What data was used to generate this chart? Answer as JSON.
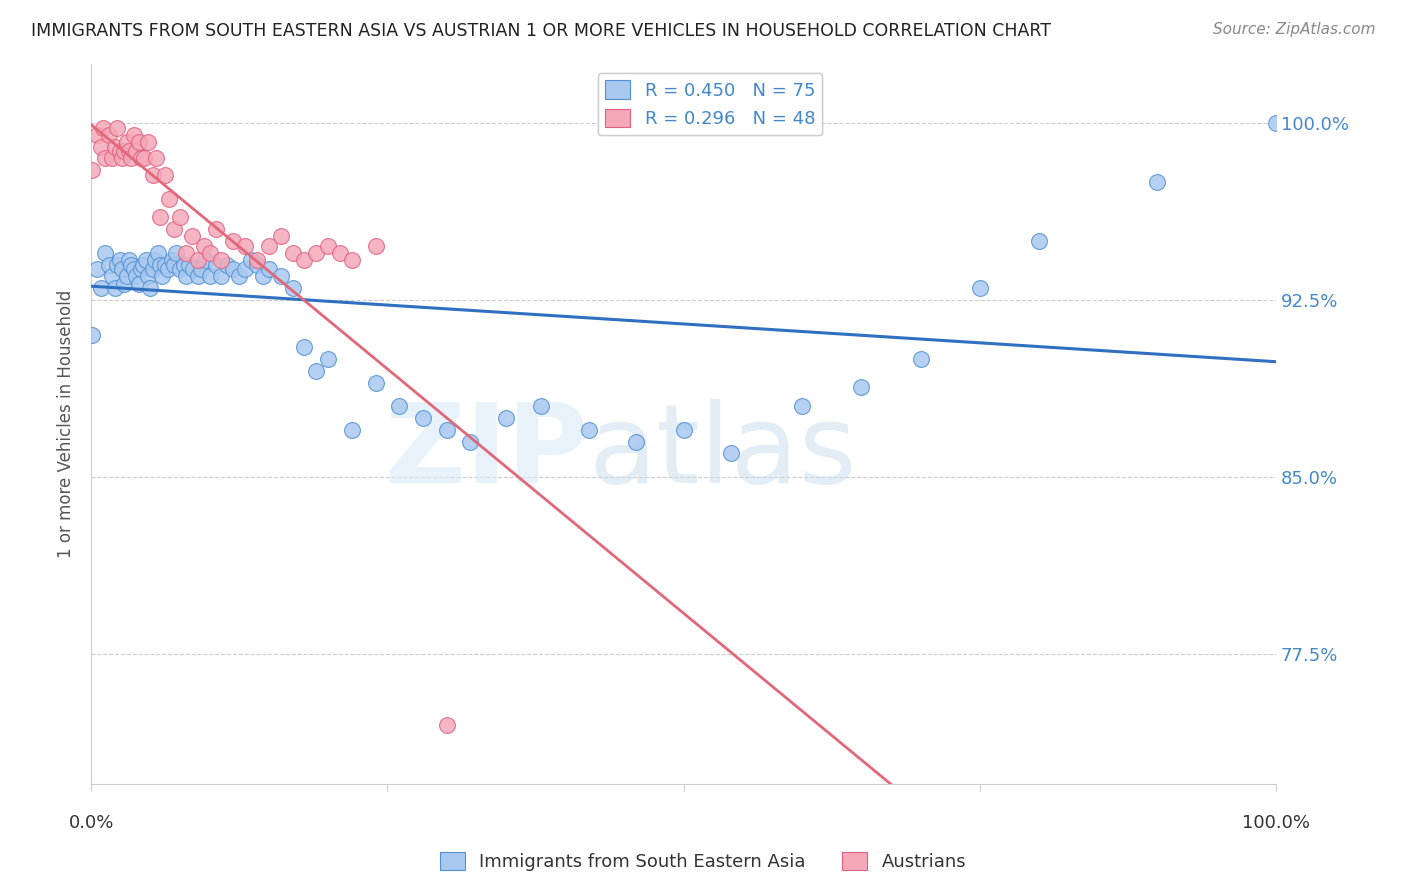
{
  "title": "IMMIGRANTS FROM SOUTH EASTERN ASIA VS AUSTRIAN 1 OR MORE VEHICLES IN HOUSEHOLD CORRELATION CHART",
  "source": "Source: ZipAtlas.com",
  "ylabel": "1 or more Vehicles in Household",
  "xlim": [
    0.0,
    1.0
  ],
  "ylim": [
    0.72,
    1.025
  ],
  "yticks": [
    0.775,
    0.85,
    0.925,
    1.0
  ],
  "ytick_labels": [
    "77.5%",
    "85.0%",
    "92.5%",
    "100.0%"
  ],
  "blue_R": 0.45,
  "blue_N": 75,
  "pink_R": 0.296,
  "pink_N": 48,
  "blue_color": "#A8C8F0",
  "pink_color": "#F4A8B8",
  "blue_edge_color": "#5090D0",
  "pink_edge_color": "#E06080",
  "blue_line_color": "#3070C0",
  "pink_line_color": "#E06878",
  "blue_scatter_x": [
    0.001,
    0.005,
    0.008,
    0.012,
    0.015,
    0.018,
    0.02,
    0.022,
    0.024,
    0.026,
    0.028,
    0.03,
    0.032,
    0.034,
    0.036,
    0.038,
    0.04,
    0.042,
    0.044,
    0.046,
    0.048,
    0.05,
    0.052,
    0.054,
    0.056,
    0.058,
    0.06,
    0.062,
    0.065,
    0.068,
    0.07,
    0.072,
    0.075,
    0.078,
    0.08,
    0.083,
    0.086,
    0.09,
    0.093,
    0.096,
    0.1,
    0.105,
    0.11,
    0.115,
    0.12,
    0.125,
    0.13,
    0.135,
    0.14,
    0.145,
    0.15,
    0.16,
    0.17,
    0.18,
    0.19,
    0.2,
    0.22,
    0.24,
    0.26,
    0.28,
    0.3,
    0.32,
    0.35,
    0.38,
    0.42,
    0.46,
    0.5,
    0.54,
    0.6,
    0.65,
    0.7,
    0.75,
    0.8,
    0.9,
    1.0
  ],
  "blue_scatter_y": [
    0.91,
    0.938,
    0.93,
    0.945,
    0.94,
    0.935,
    0.93,
    0.94,
    0.942,
    0.938,
    0.932,
    0.935,
    0.942,
    0.94,
    0.938,
    0.935,
    0.932,
    0.938,
    0.94,
    0.942,
    0.935,
    0.93,
    0.938,
    0.942,
    0.945,
    0.94,
    0.935,
    0.94,
    0.938,
    0.942,
    0.94,
    0.945,
    0.938,
    0.94,
    0.935,
    0.94,
    0.938,
    0.935,
    0.938,
    0.942,
    0.935,
    0.94,
    0.935,
    0.94,
    0.938,
    0.935,
    0.938,
    0.942,
    0.94,
    0.935,
    0.938,
    0.935,
    0.93,
    0.905,
    0.895,
    0.9,
    0.87,
    0.89,
    0.88,
    0.875,
    0.87,
    0.865,
    0.875,
    0.88,
    0.87,
    0.865,
    0.87,
    0.86,
    0.88,
    0.888,
    0.9,
    0.93,
    0.95,
    0.975,
    1.0
  ],
  "pink_scatter_x": [
    0.001,
    0.005,
    0.008,
    0.01,
    0.012,
    0.015,
    0.018,
    0.02,
    0.022,
    0.024,
    0.026,
    0.028,
    0.03,
    0.032,
    0.034,
    0.036,
    0.038,
    0.04,
    0.042,
    0.045,
    0.048,
    0.052,
    0.055,
    0.058,
    0.062,
    0.066,
    0.07,
    0.075,
    0.08,
    0.085,
    0.09,
    0.095,
    0.1,
    0.105,
    0.11,
    0.12,
    0.13,
    0.14,
    0.15,
    0.16,
    0.17,
    0.18,
    0.19,
    0.2,
    0.21,
    0.22,
    0.24,
    0.3
  ],
  "pink_scatter_y": [
    0.98,
    0.995,
    0.99,
    0.998,
    0.985,
    0.995,
    0.985,
    0.99,
    0.998,
    0.988,
    0.985,
    0.988,
    0.992,
    0.988,
    0.985,
    0.995,
    0.988,
    0.992,
    0.985,
    0.985,
    0.992,
    0.978,
    0.985,
    0.96,
    0.978,
    0.968,
    0.955,
    0.96,
    0.945,
    0.952,
    0.942,
    0.948,
    0.945,
    0.955,
    0.942,
    0.95,
    0.948,
    0.942,
    0.948,
    0.952,
    0.945,
    0.942,
    0.945,
    0.948,
    0.945,
    0.942,
    0.948,
    0.745
  ]
}
